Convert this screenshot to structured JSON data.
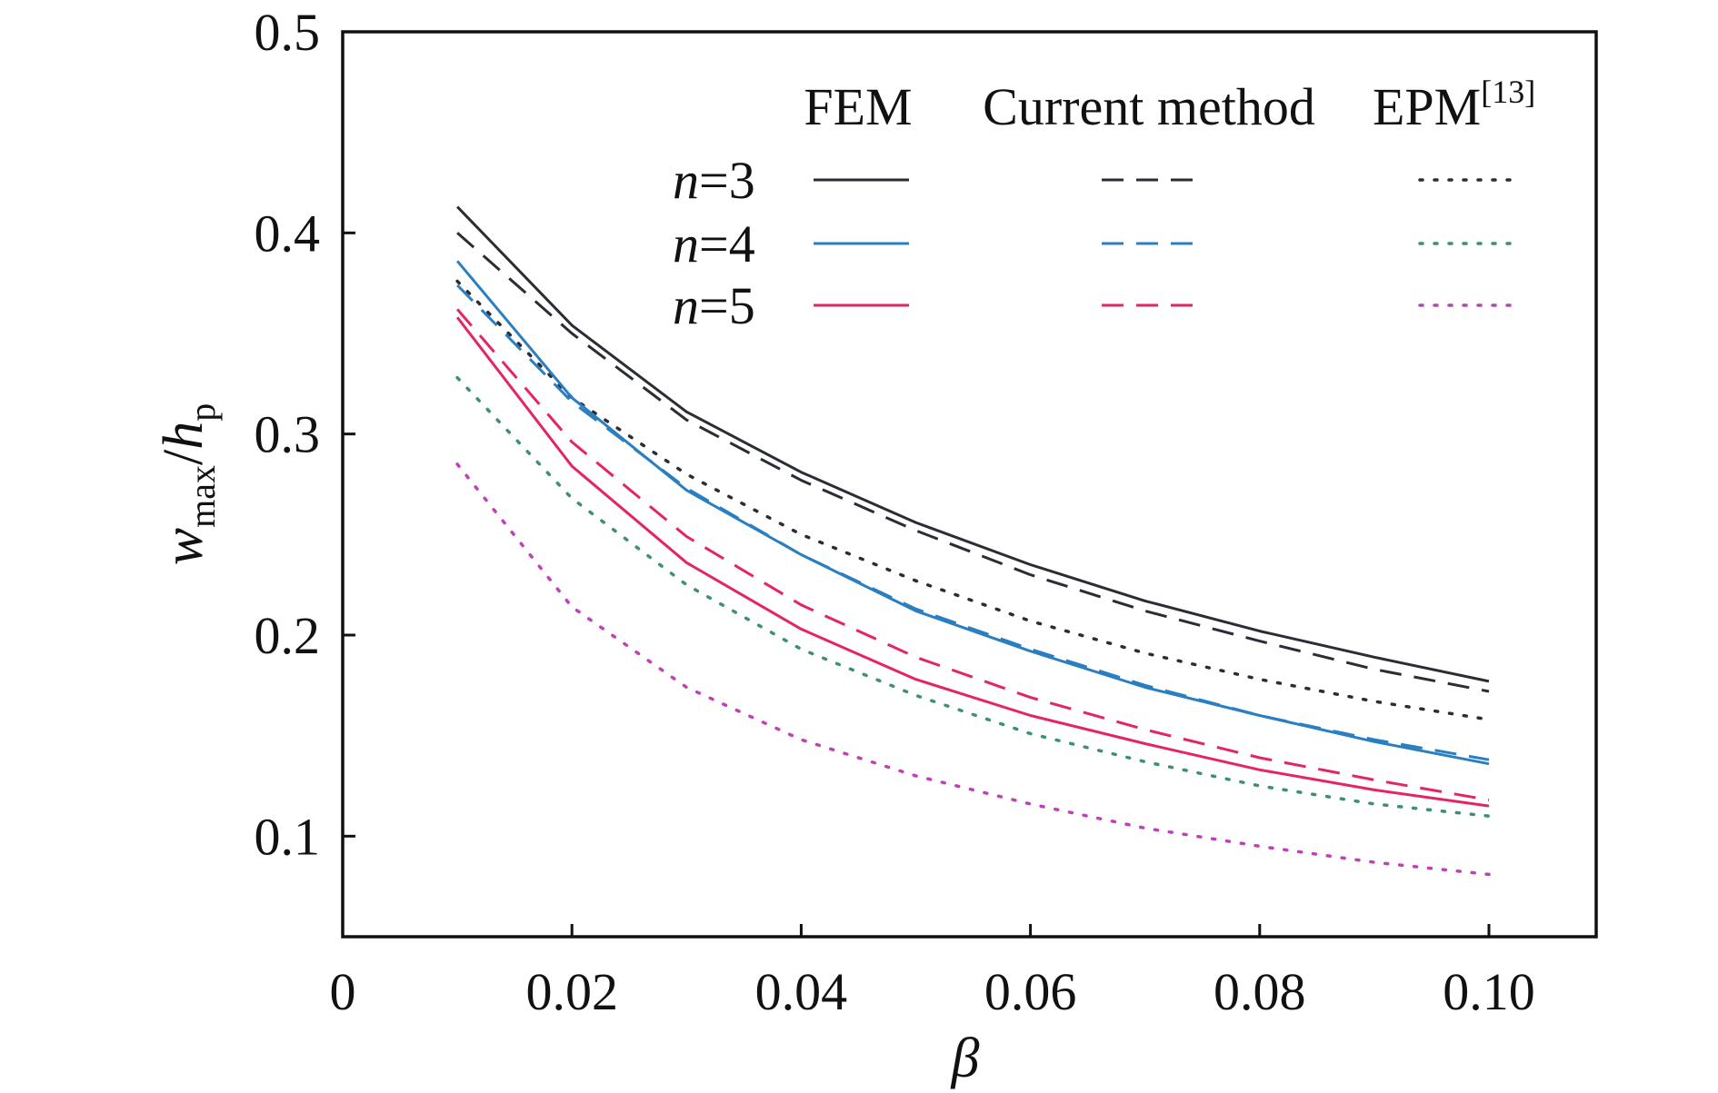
{
  "chart_data": {
    "type": "line",
    "xlabel": "β",
    "ylabel": {
      "main": "w",
      "sub1": "max",
      "sep": "/",
      "main2": "h",
      "sub2": "p"
    },
    "xlim": [
      0,
      0.11
    ],
    "ylim": [
      0.05,
      0.5
    ],
    "x_ticks": [
      0,
      0.02,
      0.04,
      0.06,
      0.08,
      0.1
    ],
    "x_tick_labels": [
      "0",
      "0.02",
      "0.04",
      "0.06",
      "0.08",
      "0.10"
    ],
    "y_ticks": [
      0.1,
      0.2,
      0.3,
      0.4,
      0.5
    ],
    "y_tick_labels": [
      "0.1",
      "0.2",
      "0.3",
      "0.4",
      "0.5"
    ],
    "grid": false,
    "legend_placement": "top-right",
    "legend": {
      "methods": [
        {
          "label": "FEM",
          "style": "solid"
        },
        {
          "label": "Current method",
          "style": "dashed"
        },
        {
          "label": "EPM",
          "sup": "[13]",
          "style": "dotted"
        }
      ],
      "rows": [
        {
          "var": "n",
          "eq": "=3",
          "color": "#2a2d36",
          "epm_color": "#2a2d36"
        },
        {
          "var": "n",
          "eq": "=4",
          "color": "#2a7fc0",
          "epm_color": "#3e8e7a"
        },
        {
          "var": "n",
          "eq": "=5",
          "color": "#e52563",
          "epm_color": "#c040b8"
        }
      ]
    },
    "x": [
      0.01,
      0.02,
      0.03,
      0.04,
      0.05,
      0.06,
      0.07,
      0.08,
      0.09,
      0.1
    ],
    "series": [
      {
        "n": 3,
        "method": "FEM",
        "style": "solid",
        "color": "#2a2d36",
        "values": [
          0.413,
          0.354,
          0.311,
          0.281,
          0.256,
          0.235,
          0.217,
          0.202,
          0.189,
          0.177
        ]
      },
      {
        "n": 3,
        "method": "Current method",
        "style": "dashed",
        "color": "#2a2d36",
        "values": [
          0.4,
          0.35,
          0.307,
          0.277,
          0.252,
          0.23,
          0.212,
          0.197,
          0.183,
          0.172
        ]
      },
      {
        "n": 3,
        "method": "EPM",
        "style": "dotted",
        "color": "#2a2d36",
        "values": [
          0.376,
          0.318,
          0.28,
          0.25,
          0.227,
          0.207,
          0.191,
          0.178,
          0.167,
          0.158
        ]
      },
      {
        "n": 4,
        "method": "FEM",
        "style": "solid",
        "color": "#2a7fc0",
        "values": [
          0.386,
          0.318,
          0.272,
          0.24,
          0.212,
          0.192,
          0.174,
          0.16,
          0.147,
          0.136
        ]
      },
      {
        "n": 4,
        "method": "Current method",
        "style": "dashed",
        "color": "#2a7fc0",
        "values": [
          0.374,
          0.316,
          0.273,
          0.24,
          0.213,
          0.193,
          0.175,
          0.16,
          0.148,
          0.138
        ]
      },
      {
        "n": 4,
        "method": "EPM",
        "style": "dotted",
        "color": "#3e8e7a",
        "values": [
          0.328,
          0.268,
          0.225,
          0.193,
          0.17,
          0.151,
          0.137,
          0.125,
          0.116,
          0.11
        ]
      },
      {
        "n": 5,
        "method": "FEM",
        "style": "solid",
        "color": "#e52563",
        "values": [
          0.358,
          0.284,
          0.236,
          0.203,
          0.178,
          0.16,
          0.146,
          0.133,
          0.123,
          0.115
        ]
      },
      {
        "n": 5,
        "method": "Current method",
        "style": "dashed",
        "color": "#e52563",
        "values": [
          0.362,
          0.296,
          0.249,
          0.215,
          0.189,
          0.169,
          0.153,
          0.139,
          0.128,
          0.118
        ]
      },
      {
        "n": 5,
        "method": "EPM",
        "style": "dotted",
        "color": "#c040b8",
        "values": [
          0.285,
          0.214,
          0.174,
          0.148,
          0.13,
          0.116,
          0.104,
          0.095,
          0.087,
          0.081
        ]
      }
    ]
  }
}
